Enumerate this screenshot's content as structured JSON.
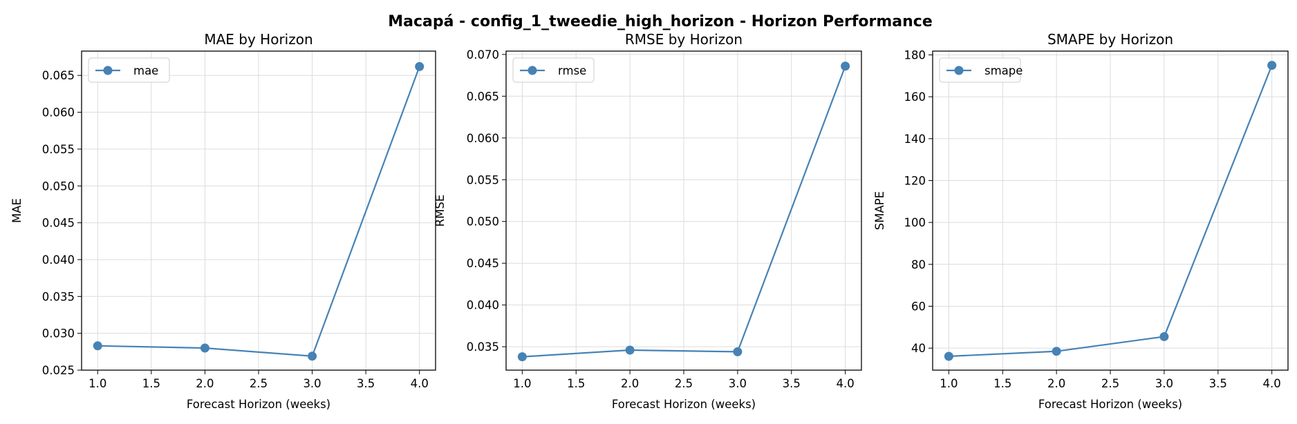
{
  "figure": {
    "title": "Macapá - config_1_tweedie_high_horizon - Horizon Performance"
  },
  "chart_data": [
    {
      "type": "line",
      "title": "MAE by Horizon",
      "xlabel": "Forecast Horizon (weeks)",
      "ylabel": "MAE",
      "x": [
        1.0,
        2.0,
        3.0,
        4.0
      ],
      "xlim": [
        0.85,
        4.15
      ],
      "ylim": [
        0.025,
        0.0683
      ],
      "xticks": [
        1.0,
        1.5,
        2.0,
        2.5,
        3.0,
        3.5,
        4.0
      ],
      "yticks": [
        0.025,
        0.03,
        0.035,
        0.04,
        0.045,
        0.05,
        0.055,
        0.06,
        0.065
      ],
      "xtick_labels": [
        "1.0",
        "1.5",
        "2.0",
        "2.5",
        "3.0",
        "3.5",
        "4.0"
      ],
      "ytick_labels": [
        "0.025",
        "0.030",
        "0.035",
        "0.040",
        "0.045",
        "0.050",
        "0.055",
        "0.060",
        "0.065"
      ],
      "grid": true,
      "legend_position": "top-left",
      "series": [
        {
          "name": "mae",
          "values": [
            0.0283,
            0.028,
            0.0269,
            0.0662
          ],
          "color": "#4682b4"
        }
      ]
    },
    {
      "type": "line",
      "title": "RMSE by Horizon",
      "xlabel": "Forecast Horizon (weeks)",
      "ylabel": "RMSE",
      "x": [
        1.0,
        2.0,
        3.0,
        4.0
      ],
      "xlim": [
        0.85,
        4.15
      ],
      "ylim": [
        0.0322,
        0.0704
      ],
      "xticks": [
        1.0,
        1.5,
        2.0,
        2.5,
        3.0,
        3.5,
        4.0
      ],
      "yticks": [
        0.035,
        0.04,
        0.045,
        0.05,
        0.055,
        0.06,
        0.065,
        0.07
      ],
      "xtick_labels": [
        "1.0",
        "1.5",
        "2.0",
        "2.5",
        "3.0",
        "3.5",
        "4.0"
      ],
      "ytick_labels": [
        "0.035",
        "0.040",
        "0.045",
        "0.050",
        "0.055",
        "0.060",
        "0.065",
        "0.070"
      ],
      "grid": true,
      "legend_position": "top-left",
      "series": [
        {
          "name": "rmse",
          "values": [
            0.0338,
            0.0346,
            0.0344,
            0.0686
          ],
          "color": "#4682b4"
        }
      ]
    },
    {
      "type": "line",
      "title": "SMAPE by Horizon",
      "xlabel": "Forecast Horizon (weeks)",
      "ylabel": "SMAPE",
      "x": [
        1.0,
        2.0,
        3.0,
        4.0
      ],
      "xlim": [
        0.85,
        4.15
      ],
      "ylim": [
        29.5,
        181.8
      ],
      "xticks": [
        1.0,
        1.5,
        2.0,
        2.5,
        3.0,
        3.5,
        4.0
      ],
      "yticks": [
        40,
        60,
        80,
        100,
        120,
        140,
        160,
        180
      ],
      "xtick_labels": [
        "1.0",
        "1.5",
        "2.0",
        "2.5",
        "3.0",
        "3.5",
        "4.0"
      ],
      "ytick_labels": [
        "40",
        "60",
        "80",
        "100",
        "120",
        "140",
        "160",
        "180"
      ],
      "grid": true,
      "legend_position": "top-left",
      "series": [
        {
          "name": "smape",
          "values": [
            36.1,
            38.5,
            45.5,
            175.0
          ],
          "color": "#4682b4"
        }
      ]
    }
  ]
}
